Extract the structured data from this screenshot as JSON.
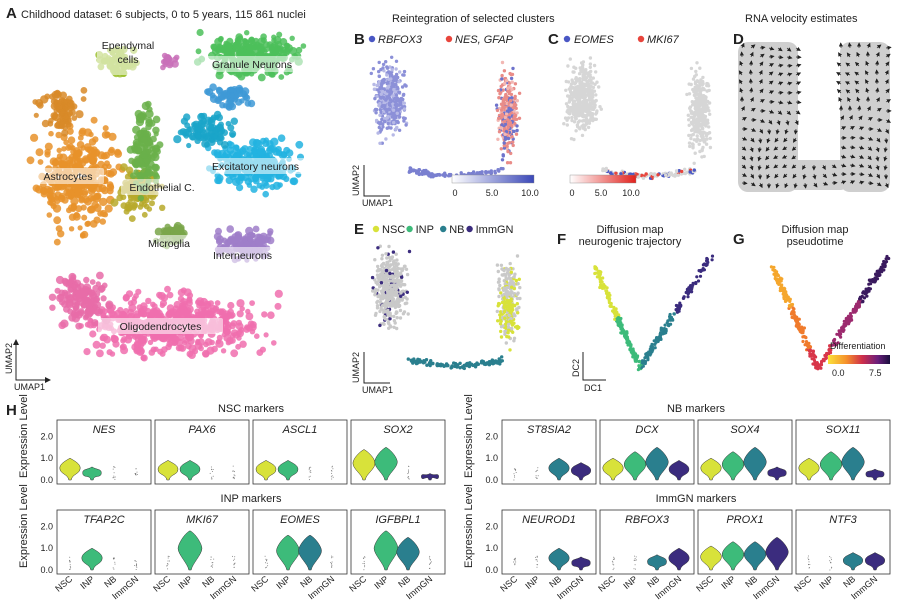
{
  "panel_a": {
    "letter": "A",
    "title": "Childhood dataset: 6 subjects, 0 to 5 years, 115 861 nuclei",
    "axis_x": "UMAP1",
    "axis_y": "UMAP2",
    "clusters": [
      {
        "label": "Ependymal\ncells",
        "color": "#9bbf2e"
      },
      {
        "label": "Granule Neurons",
        "color": "#4cbf5a"
      },
      {
        "label": "Excitatory neurons",
        "color": "#22b3e0"
      },
      {
        "label": "Astrocytes",
        "color": "#e8922a"
      },
      {
        "label": "Endothelial C.",
        "color": "#b7a92a"
      },
      {
        "label": "Microglia",
        "color": "#6ab04a"
      },
      {
        "label": "Interneurons",
        "color": "#9f7ec9"
      },
      {
        "label": "Oligodendrocytes",
        "color": "#f06fae"
      }
    ]
  },
  "panel_b": {
    "letter": "B",
    "header": "Reintegration of selected clusters",
    "legend": [
      "RBFOX3",
      "NES, GFAP"
    ],
    "colors": [
      "#4a57c4",
      "#e8453c"
    ],
    "colorbar_ticks": [
      "0",
      "5.0",
      "10.0"
    ],
    "axis_x": "UMAP1",
    "axis_y": "UMAP2"
  },
  "panel_c": {
    "letter": "C",
    "legend": [
      "EOMES",
      "MKI67"
    ],
    "colors": [
      "#4a57c4",
      "#e8453c"
    ],
    "colorbar_ticks": [
      "0",
      "5.0",
      "10.0"
    ]
  },
  "panel_d": {
    "letter": "D",
    "title": "RNA velocity estimates"
  },
  "panel_e": {
    "letter": "E",
    "legend": [
      "NSC",
      "INP",
      "NB",
      "ImmGN"
    ],
    "colors": [
      "#d8e23a",
      "#3dbb7a",
      "#2a7f8e",
      "#3b2c7e"
    ],
    "axis_x": "UMAP1",
    "axis_y": "UMAP2"
  },
  "panel_f": {
    "letter": "F",
    "title": "Diffusion map\nneurogenic trajectory",
    "axis_x": "DC1",
    "axis_y": "DC2"
  },
  "panel_g": {
    "letter": "G",
    "title": "Diffusion map\npseudotime",
    "legend_title": "Differentiation",
    "legend_ticks": [
      "0.0",
      "7.5"
    ]
  },
  "panel_h": {
    "letter": "H",
    "ylabel": "Expression Level",
    "yticks": [
      "0.0",
      "1.0",
      "2.0"
    ],
    "groups": [
      "NSC",
      "INP",
      "NB",
      "ImmGN"
    ],
    "group_colors": [
      "#d8e23a",
      "#3dbb7a",
      "#2a7f8e",
      "#3b2c7e"
    ],
    "blocks": [
      {
        "title": "NSC markers",
        "genes": [
          {
            "gene": "NES",
            "levels": [
              1.0,
              0.6,
              0.0,
              0.0
            ]
          },
          {
            "gene": "PAX6",
            "levels": [
              0.9,
              0.9,
              0.0,
              0.0
            ]
          },
          {
            "gene": "ASCL1",
            "levels": [
              0.9,
              0.9,
              0.0,
              0.0
            ]
          },
          {
            "gene": "SOX2",
            "levels": [
              1.4,
              1.5,
              0.0,
              0.3
            ]
          }
        ]
      },
      {
        "title": "NB markers",
        "genes": [
          {
            "gene": "ST8SIA2",
            "levels": [
              0.0,
              0.0,
              1.0,
              0.8
            ]
          },
          {
            "gene": "DCX",
            "levels": [
              1.0,
              1.3,
              1.5,
              0.9
            ]
          },
          {
            "gene": "SOX4",
            "levels": [
              1.0,
              1.3,
              1.5,
              0.6
            ]
          },
          {
            "gene": "SOX11",
            "levels": [
              1.0,
              1.3,
              1.5,
              0.5
            ]
          }
        ]
      },
      {
        "title": "INP markers",
        "genes": [
          {
            "gene": "TFAP2C",
            "levels": [
              0.0,
              1.0,
              0.0,
              0.0
            ]
          },
          {
            "gene": "MKI67",
            "levels": [
              0.0,
              1.8,
              0.0,
              0.0
            ]
          },
          {
            "gene": "EOMES",
            "levels": [
              0.0,
              1.6,
              1.6,
              0.0
            ]
          },
          {
            "gene": "IGFBPL1",
            "levels": [
              0.0,
              1.8,
              1.5,
              0.0
            ]
          }
        ]
      },
      {
        "title": "ImmGN markers",
        "genes": [
          {
            "gene": "NEUROD1",
            "levels": [
              0.0,
              0.0,
              1.0,
              0.6
            ]
          },
          {
            "gene": "RBFOX3",
            "levels": [
              0.0,
              0.0,
              0.7,
              1.0
            ]
          },
          {
            "gene": "PROX1",
            "levels": [
              1.1,
              1.3,
              1.3,
              1.5
            ]
          },
          {
            "gene": "NTF3",
            "levels": [
              0.0,
              0.0,
              0.8,
              0.8
            ]
          }
        ]
      }
    ]
  }
}
